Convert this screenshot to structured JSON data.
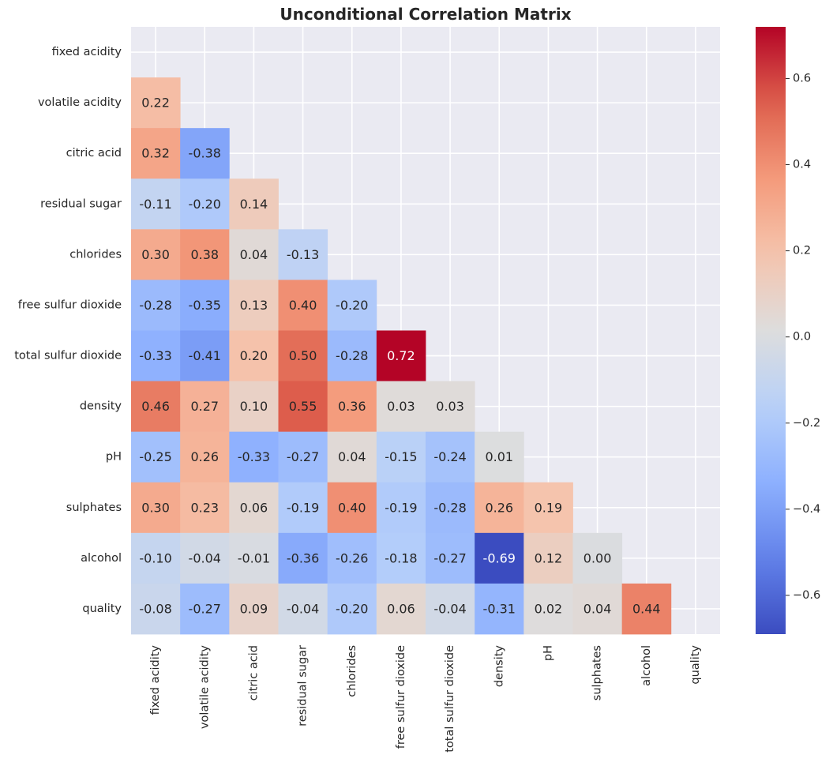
{
  "chart_data": {
    "type": "heatmap",
    "title": "Unconditional Correlation Matrix",
    "labels": [
      "fixed acidity",
      "volatile acidity",
      "citric acid",
      "residual sugar",
      "chlorides",
      "free sulfur dioxide",
      "total sulfur dioxide",
      "density",
      "pH",
      "sulphates",
      "alcohol",
      "quality"
    ],
    "mask": "lower-triangle (diagonal and upper cells hidden)",
    "values": [
      [],
      [
        0.22
      ],
      [
        0.32,
        -0.38
      ],
      [
        -0.11,
        -0.2,
        0.14
      ],
      [
        0.3,
        0.38,
        0.04,
        -0.13
      ],
      [
        -0.28,
        -0.35,
        0.13,
        0.4,
        -0.2
      ],
      [
        -0.33,
        -0.41,
        0.2,
        0.5,
        -0.28,
        0.72
      ],
      [
        0.46,
        0.27,
        0.1,
        0.55,
        0.36,
        0.03,
        0.03
      ],
      [
        -0.25,
        0.26,
        -0.33,
        -0.27,
        0.04,
        -0.15,
        -0.24,
        0.01
      ],
      [
        0.3,
        0.23,
        0.06,
        -0.19,
        0.4,
        -0.19,
        -0.28,
        0.26,
        0.19
      ],
      [
        -0.1,
        -0.04,
        -0.01,
        -0.36,
        -0.26,
        -0.18,
        -0.27,
        -0.69,
        0.12,
        -0.0
      ],
      [
        -0.08,
        -0.27,
        0.09,
        -0.04,
        -0.2,
        0.06,
        -0.04,
        -0.31,
        0.02,
        0.04,
        0.44
      ]
    ],
    "value_format": "0.00",
    "colormap": "coolwarm",
    "vmin": -0.69,
    "vmax": 0.72,
    "colorbar_ticks": [
      -0.6,
      -0.4,
      -0.2,
      0.0,
      0.2,
      0.4,
      0.6
    ],
    "colorbar_tick_labels": [
      "−0.6",
      "−0.4",
      "−0.2",
      "0.0",
      "0.2",
      "0.4",
      "0.6"
    ],
    "grid": true,
    "colors": {
      "background": "#EAEAF2",
      "grid": "#FFFFFF",
      "text": "#262626"
    }
  }
}
